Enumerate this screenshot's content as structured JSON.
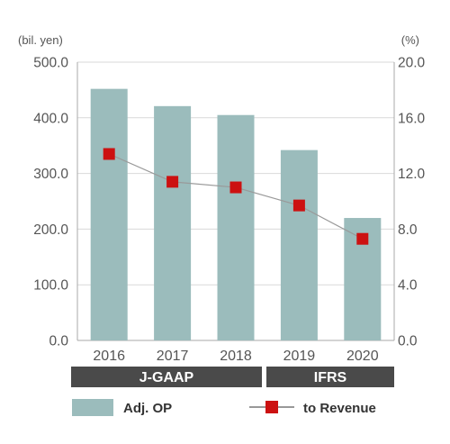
{
  "chart_data": {
    "type": "bar",
    "categories": [
      "2016",
      "2017",
      "2018",
      "2019",
      "2020"
    ],
    "series": [
      {
        "name": "Adj. OP",
        "type": "bar",
        "axis": "left",
        "values": [
          452,
          421,
          405,
          342,
          220
        ],
        "color": "#9bbcbc"
      },
      {
        "name": "to Revenue",
        "type": "line",
        "axis": "right",
        "values": [
          13.4,
          11.4,
          11.0,
          9.7,
          7.3
        ],
        "color": "#cc1111",
        "line_color": "#999999"
      }
    ],
    "left_axis": {
      "unit_label": "(bil. yen)",
      "ylim": [
        0,
        500
      ],
      "ticks": [
        "0.0",
        "100.0",
        "200.0",
        "300.0",
        "400.0",
        "500.0"
      ]
    },
    "right_axis": {
      "unit_label": "(%)",
      "ylim": [
        0,
        20
      ],
      "ticks": [
        "0.0",
        "4.0",
        "8.0",
        "12.0",
        "16.0",
        "20.0"
      ]
    },
    "standards": [
      {
        "label": "J-GAAP",
        "categories": [
          "2016",
          "2017",
          "2018"
        ]
      },
      {
        "label": "IFRS",
        "categories": [
          "2019",
          "2020"
        ]
      }
    ],
    "grid": true,
    "legend_position": "bottom"
  },
  "legend": {
    "bar_label": "Adj. OP",
    "line_label": "to Revenue"
  },
  "colors": {
    "bar": "#9bbcbc",
    "marker": "#cc1111",
    "line": "#999999",
    "band": "#4a4a4a",
    "grid": "#d9d9d9",
    "axis": "#aaaaaa",
    "text": "#555555"
  }
}
